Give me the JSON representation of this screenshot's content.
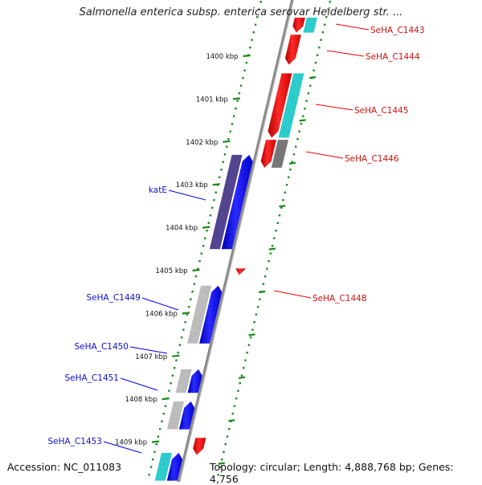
{
  "title": "Salmonella enterica subsp. enterica serovar Heidelberg str. ...",
  "accession": "Accession: NC_011083",
  "topology": "Topology: circular; Length: 4,888,768 bp; Genes: 4,756",
  "ticks": [
    {
      "label": "1400 kbp",
      "pos": 0
    },
    {
      "label": "1401 kbp",
      "pos": 1
    },
    {
      "label": "1402 kbp",
      "pos": 2
    },
    {
      "label": "1403 kbp",
      "pos": 3
    },
    {
      "label": "1404 kbp",
      "pos": 4
    },
    {
      "label": "1405 kbp",
      "pos": 5
    },
    {
      "label": "1406 kbp",
      "pos": 6
    },
    {
      "label": "1407 kbp",
      "pos": 7
    },
    {
      "label": "1408 kbp",
      "pos": 8
    },
    {
      "label": "1409 kbp",
      "pos": 9
    }
  ],
  "forward_genes": [
    {
      "name": "katE",
      "start": 2.3,
      "end": 4.5,
      "color": "#0000ee",
      "shade": "#4a3a8a"
    },
    {
      "name": "SeHA_C1449",
      "start": 5.35,
      "end": 6.7,
      "color": "#0000ee",
      "shade": "#b8b8b8"
    },
    {
      "name": "SeHA_C1450",
      "start": 7.3,
      "end": 7.85,
      "color": "#0000ee",
      "shade": "#b8b8b8"
    },
    {
      "name": "SeHA_C1451",
      "start": 8.05,
      "end": 8.7,
      "color": "#0000ee",
      "shade": "#b8b8b8"
    },
    {
      "name": "SeHA_C1453",
      "start": 9.25,
      "end": 9.9,
      "color": "#0000ee",
      "shade": "#22c8c8"
    }
  ],
  "reverse_genes": [
    {
      "name": "SeHA_C1443",
      "start": -0.9,
      "end": -0.55,
      "color": "#ee0000",
      "shade": "#22c8c8"
    },
    {
      "name": "SeHA_C1444",
      "start": -0.5,
      "end": 0.2,
      "color": "#ee0000",
      "shade": null
    },
    {
      "name": "SeHA_C1445",
      "start": 0.4,
      "end": 1.9,
      "color": "#ee0000",
      "shade": "#22c8c8"
    },
    {
      "name": "SeHA_C1446",
      "start": 1.95,
      "end": 2.6,
      "color": "#ee0000",
      "shade": "#707070"
    },
    {
      "name": "SeHA_C1448",
      "start": 4.95,
      "end": 5.1,
      "color": "#ee0000",
      "shade": null
    },
    {
      "name": "",
      "start": 8.9,
      "end": 9.3,
      "color": "#ee0000",
      "shade": null
    }
  ],
  "colors": {
    "backbone": "#808080",
    "ticks": "#1a8a1a",
    "forward": "#0000ee",
    "reverse": "#ee0000"
  }
}
